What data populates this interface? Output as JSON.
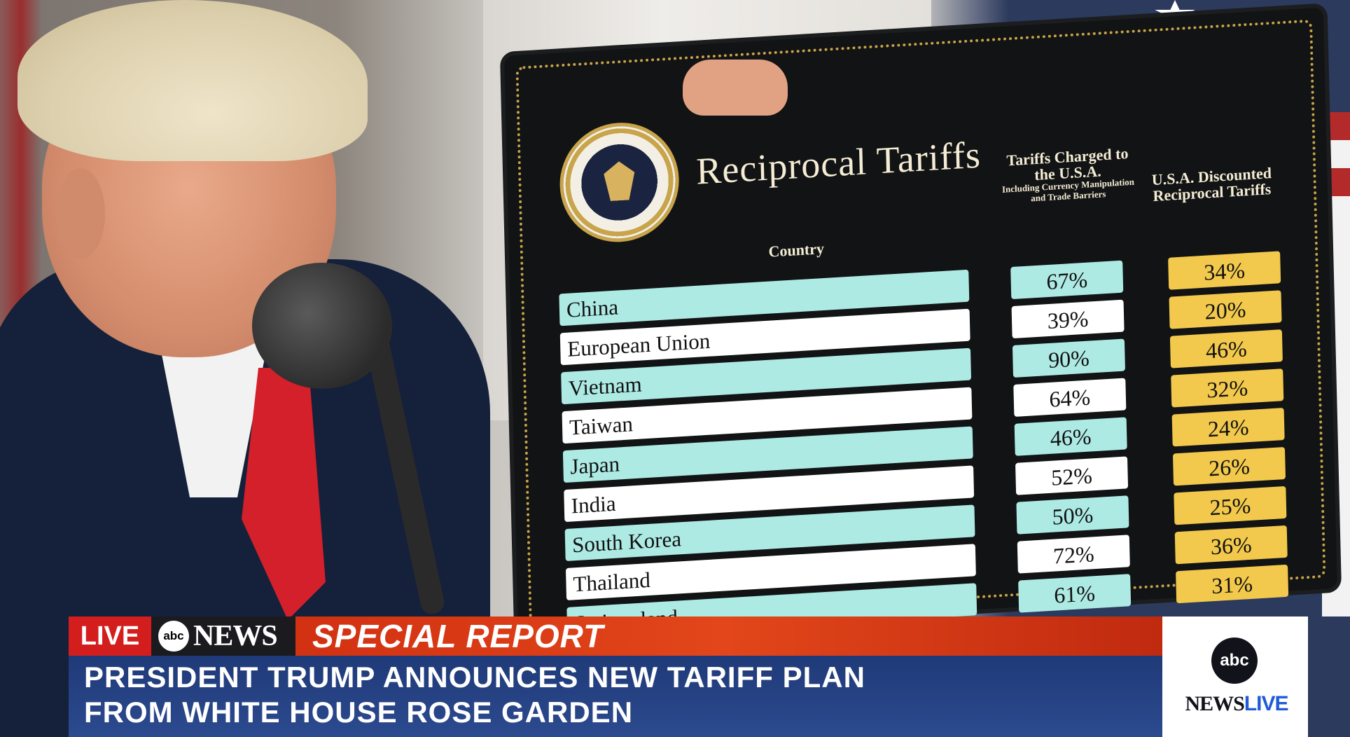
{
  "board": {
    "title": "Reciprocal Tariffs",
    "header_country": "Country",
    "header_charged_main": "Tariffs Charged to the U.S.A.",
    "header_charged_sub": "Including Currency Manipulation and Trade Barriers",
    "header_discount": "U.S.A. Discounted Reciprocal Tariffs",
    "rows": [
      {
        "country": "China",
        "charged": "67%",
        "discount": "34%",
        "shade": "teal"
      },
      {
        "country": "European Union",
        "charged": "39%",
        "discount": "20%",
        "shade": "white"
      },
      {
        "country": "Vietnam",
        "charged": "90%",
        "discount": "46%",
        "shade": "teal"
      },
      {
        "country": "Taiwan",
        "charged": "64%",
        "discount": "32%",
        "shade": "white"
      },
      {
        "country": "Japan",
        "charged": "46%",
        "discount": "24%",
        "shade": "teal"
      },
      {
        "country": "India",
        "charged": "52%",
        "discount": "26%",
        "shade": "white"
      },
      {
        "country": "South Korea",
        "charged": "50%",
        "discount": "25%",
        "shade": "teal"
      },
      {
        "country": "Thailand",
        "charged": "72%",
        "discount": "36%",
        "shade": "white"
      },
      {
        "country": "Switzerland",
        "charged": "61%",
        "discount": "31%",
        "shade": "teal"
      }
    ]
  },
  "lower_third": {
    "live_label": "LIVE",
    "network_abc": "abc",
    "network_news": "NEWS",
    "banner": "SPECIAL REPORT",
    "headline_line1": "PRESIDENT TRUMP ANNOUNCES NEW TARIFF PLAN",
    "headline_line2": "FROM WHITE HOUSE ROSE GARDEN"
  },
  "bug": {
    "abc": "abc",
    "news": "NEWS",
    "live": "LIVE"
  },
  "colors": {
    "teal_row": "#aeeae4",
    "gold_cell": "#f2c94c",
    "banner_orange": "#e2461a",
    "headline_blue": "#2c4a8f"
  }
}
